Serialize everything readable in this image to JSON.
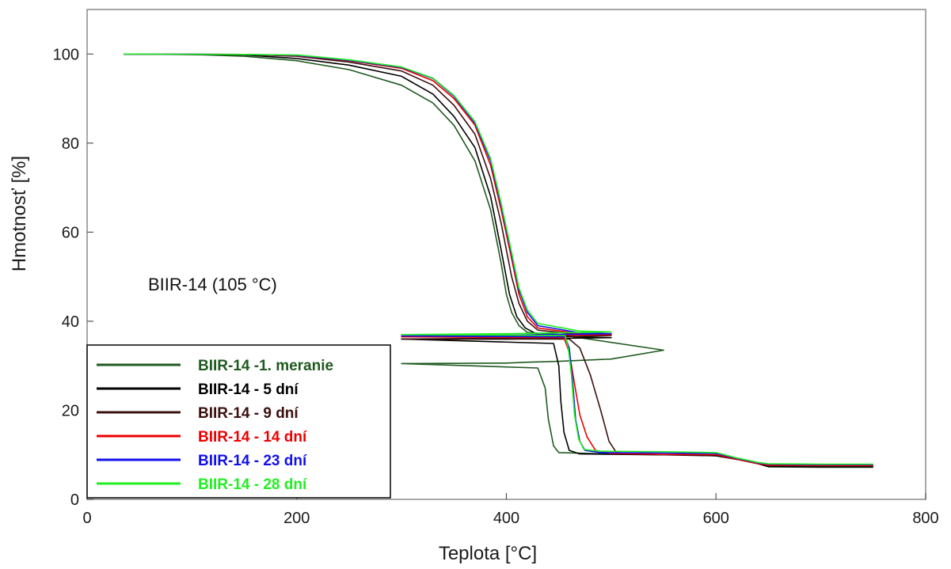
{
  "chart_data": {
    "type": "line",
    "title": "",
    "xlabel": "Teplota [°C]",
    "ylabel": "Hmotnosť [%]",
    "xlim": [
      0,
      800
    ],
    "ylim": [
      0,
      110
    ],
    "x_ticks": [
      0,
      200,
      400,
      600,
      800
    ],
    "y_ticks": [
      0,
      20,
      40,
      60,
      80,
      100
    ],
    "grid": false,
    "annotation": "BIIR-14 (105 °C)",
    "legend_position": "bottom-left",
    "series": [
      {
        "name": "BIIR-14 -1. meranie",
        "color": "#1f5a1f",
        "points": [
          [
            35,
            100
          ],
          [
            100,
            99.9
          ],
          [
            150,
            99.5
          ],
          [
            200,
            98.5
          ],
          [
            250,
            96.5
          ],
          [
            300,
            93
          ],
          [
            330,
            89
          ],
          [
            350,
            84
          ],
          [
            370,
            76
          ],
          [
            385,
            65
          ],
          [
            395,
            53
          ],
          [
            400,
            46
          ],
          [
            405,
            42
          ],
          [
            412,
            39
          ],
          [
            420,
            37.5
          ],
          [
            450,
            37
          ],
          [
            550,
            33.5
          ],
          [
            500,
            31.5
          ],
          [
            450,
            31
          ],
          [
            420,
            30.8
          ],
          [
            400,
            30.6
          ],
          [
            300,
            30.5
          ],
          [
            430,
            29.5
          ],
          [
            437,
            25
          ],
          [
            440,
            18
          ],
          [
            445,
            12
          ],
          [
            450,
            10.5
          ],
          [
            500,
            10.2
          ],
          [
            550,
            10
          ],
          [
            580,
            10
          ],
          [
            600,
            9.8
          ],
          [
            620,
            9
          ],
          [
            640,
            8
          ],
          [
            650,
            7.3
          ],
          [
            700,
            7.2
          ],
          [
            750,
            7.2
          ]
        ]
      },
      {
        "name": "BIIR-14 - 5 dní",
        "color": "#000000",
        "points": [
          [
            35,
            100
          ],
          [
            150,
            99.8
          ],
          [
            200,
            99
          ],
          [
            250,
            97.5
          ],
          [
            300,
            95
          ],
          [
            330,
            91
          ],
          [
            350,
            86
          ],
          [
            370,
            79
          ],
          [
            385,
            68
          ],
          [
            395,
            56
          ],
          [
            403,
            46
          ],
          [
            410,
            41
          ],
          [
            418,
            38.5
          ],
          [
            430,
            37
          ],
          [
            470,
            36.5
          ],
          [
            500,
            36.3
          ],
          [
            400,
            36
          ],
          [
            300,
            36
          ],
          [
            445,
            35
          ],
          [
            450,
            30
          ],
          [
            452,
            22
          ],
          [
            455,
            15
          ],
          [
            460,
            11
          ],
          [
            470,
            10.2
          ],
          [
            550,
            10
          ],
          [
            600,
            9.8
          ],
          [
            620,
            9
          ],
          [
            640,
            8
          ],
          [
            650,
            7.4
          ],
          [
            700,
            7.3
          ],
          [
            750,
            7.3
          ]
        ]
      },
      {
        "name": "BIIR-14 - 9 dní",
        "color": "#3b1010",
        "points": [
          [
            35,
            100
          ],
          [
            150,
            99.9
          ],
          [
            200,
            99.5
          ],
          [
            250,
            98.2
          ],
          [
            300,
            96.2
          ],
          [
            330,
            93
          ],
          [
            350,
            88.5
          ],
          [
            370,
            82
          ],
          [
            385,
            72
          ],
          [
            395,
            62
          ],
          [
            405,
            50
          ],
          [
            412,
            44
          ],
          [
            420,
            40
          ],
          [
            430,
            38
          ],
          [
            470,
            37
          ],
          [
            500,
            36.8
          ],
          [
            400,
            36.2
          ],
          [
            300,
            36
          ],
          [
            460,
            36
          ],
          [
            470,
            34
          ],
          [
            480,
            28
          ],
          [
            490,
            20
          ],
          [
            498,
            13
          ],
          [
            505,
            10.5
          ],
          [
            550,
            10
          ],
          [
            600,
            10
          ],
          [
            620,
            9
          ],
          [
            640,
            8
          ],
          [
            650,
            7.6
          ],
          [
            700,
            7.5
          ],
          [
            750,
            7.5
          ]
        ]
      },
      {
        "name": "BIIR-14 - 14 dní",
        "color": "#ee0000",
        "points": [
          [
            35,
            100
          ],
          [
            150,
            99.9
          ],
          [
            200,
            99.6
          ],
          [
            250,
            98.5
          ],
          [
            300,
            96.8
          ],
          [
            330,
            94
          ],
          [
            350,
            90
          ],
          [
            370,
            84
          ],
          [
            385,
            75
          ],
          [
            395,
            65
          ],
          [
            405,
            54
          ],
          [
            412,
            46
          ],
          [
            420,
            41
          ],
          [
            430,
            38.5
          ],
          [
            470,
            37.2
          ],
          [
            500,
            37
          ],
          [
            400,
            36.7
          ],
          [
            300,
            36.5
          ],
          [
            455,
            36.3
          ],
          [
            460,
            33
          ],
          [
            465,
            26
          ],
          [
            470,
            19
          ],
          [
            477,
            14
          ],
          [
            485,
            11
          ],
          [
            500,
            10.3
          ],
          [
            550,
            10.1
          ],
          [
            600,
            10
          ],
          [
            620,
            9
          ],
          [
            640,
            8
          ],
          [
            650,
            7.7
          ],
          [
            700,
            7.6
          ],
          [
            750,
            7.6
          ]
        ]
      },
      {
        "name": "BIIR-14 - 23 dní",
        "color": "#1010ee",
        "points": [
          [
            35,
            100
          ],
          [
            150,
            99.9
          ],
          [
            200,
            99.7
          ],
          [
            250,
            98.6
          ],
          [
            300,
            97
          ],
          [
            330,
            94.5
          ],
          [
            350,
            90.5
          ],
          [
            370,
            84.5
          ],
          [
            385,
            76
          ],
          [
            395,
            66
          ],
          [
            405,
            55
          ],
          [
            412,
            47
          ],
          [
            420,
            42
          ],
          [
            430,
            39
          ],
          [
            470,
            37.4
          ],
          [
            500,
            37.2
          ],
          [
            400,
            36.9
          ],
          [
            300,
            36.7
          ],
          [
            456,
            36.5
          ],
          [
            460,
            34
          ],
          [
            463,
            27
          ],
          [
            466,
            18
          ],
          [
            470,
            13
          ],
          [
            475,
            11
          ],
          [
            490,
            10.5
          ],
          [
            550,
            10.4
          ],
          [
            600,
            10.3
          ],
          [
            620,
            9.2
          ],
          [
            640,
            8.2
          ],
          [
            650,
            7.9
          ],
          [
            700,
            7.8
          ],
          [
            750,
            7.8
          ]
        ]
      },
      {
        "name": "BIIR-14 - 28 dní",
        "color": "#22ee22",
        "points": [
          [
            35,
            100
          ],
          [
            150,
            99.9
          ],
          [
            200,
            99.8
          ],
          [
            250,
            98.7
          ],
          [
            300,
            97.1
          ],
          [
            330,
            94.6
          ],
          [
            350,
            90.7
          ],
          [
            370,
            84.8
          ],
          [
            385,
            76.5
          ],
          [
            395,
            66.5
          ],
          [
            405,
            55.5
          ],
          [
            412,
            47.5
          ],
          [
            420,
            42.5
          ],
          [
            430,
            39.5
          ],
          [
            470,
            37.8
          ],
          [
            500,
            37.6
          ],
          [
            400,
            37.2
          ],
          [
            300,
            37
          ],
          [
            456,
            36.8
          ],
          [
            459,
            34
          ],
          [
            462,
            28
          ],
          [
            465,
            19
          ],
          [
            469,
            13.5
          ],
          [
            474,
            11.2
          ],
          [
            490,
            10.8
          ],
          [
            550,
            10.7
          ],
          [
            600,
            10.5
          ],
          [
            620,
            9.3
          ],
          [
            640,
            8.3
          ],
          [
            650,
            8
          ],
          [
            700,
            7.9
          ],
          [
            750,
            7.9
          ]
        ]
      }
    ]
  }
}
